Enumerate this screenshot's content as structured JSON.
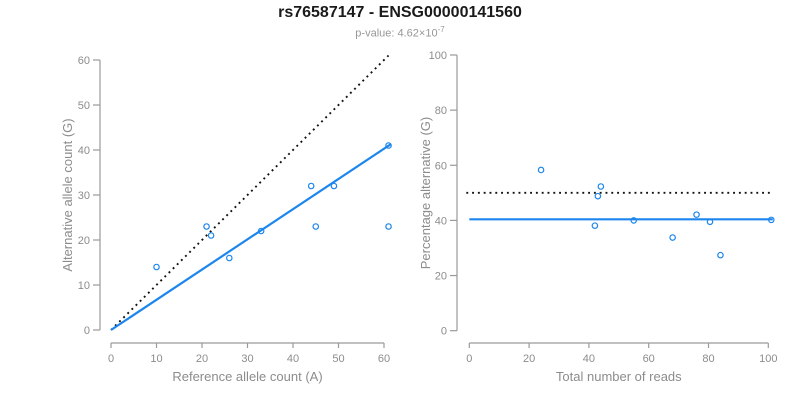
{
  "header": {
    "title": "rs76587147 - ENSG00000141560",
    "subtitle_prefix": "p-value: 4.62×10",
    "subtitle_exponent": "-7"
  },
  "colors": {
    "accent_blue": "#1C86EE",
    "dotted_line": "#111111",
    "axis_line": "#9a9a9a",
    "tick_label": "#8c8c8c",
    "axis_title": "#8c8c8c"
  },
  "chart_data": [
    {
      "type": "scatter",
      "xlabel": "Reference allele count (A)",
      "ylabel": "Alternative allele count (G)",
      "xlim": [
        0,
        60
      ],
      "ylim": [
        0,
        60
      ],
      "xticks": [
        0,
        10,
        20,
        30,
        40,
        50,
        60
      ],
      "yticks": [
        0,
        10,
        20,
        30,
        40,
        50,
        60
      ],
      "grid": false,
      "legend": "none",
      "points": [
        [
          10,
          14
        ],
        [
          21,
          23
        ],
        [
          22,
          21
        ],
        [
          26,
          16
        ],
        [
          33,
          22
        ],
        [
          44,
          32
        ],
        [
          45,
          23
        ],
        [
          49,
          32
        ],
        [
          61,
          41
        ],
        [
          61,
          23
        ]
      ],
      "lines": [
        {
          "name": "identity-line",
          "style": "dotted",
          "color": "dotted_line",
          "from": [
            0,
            0
          ],
          "to": [
            61,
            61
          ]
        },
        {
          "name": "fit-line",
          "style": "solid",
          "color": "accent_blue",
          "from": [
            0,
            0
          ],
          "to": [
            61.5,
            41.3
          ]
        }
      ]
    },
    {
      "type": "scatter",
      "xlabel": "Total number of reads",
      "ylabel": "Percentage alternative (G)",
      "xlim": [
        0,
        100
      ],
      "ylim": [
        0,
        100
      ],
      "xticks": [
        0,
        20,
        40,
        60,
        80,
        100
      ],
      "yticks": [
        0,
        20,
        40,
        60,
        80,
        100
      ],
      "grid": false,
      "legend": "none",
      "points": [
        [
          24,
          58.3
        ],
        [
          43,
          48.8
        ],
        [
          44,
          52.3
        ],
        [
          42,
          38.1
        ],
        [
          55,
          40.0
        ],
        [
          68,
          33.8
        ],
        [
          76,
          42.1
        ],
        [
          80.5,
          39.5
        ],
        [
          84,
          27.4
        ],
        [
          101,
          40.2
        ]
      ],
      "lines": [
        {
          "name": "null-50pct-line",
          "style": "dotted",
          "color": "dotted_line",
          "from": [
            -1,
            50
          ],
          "to": [
            100.5,
            50
          ]
        },
        {
          "name": "mean-ratio-line",
          "style": "solid",
          "color": "accent_blue",
          "from": [
            0,
            40.4
          ],
          "to": [
            101.5,
            40.4
          ]
        }
      ]
    }
  ]
}
